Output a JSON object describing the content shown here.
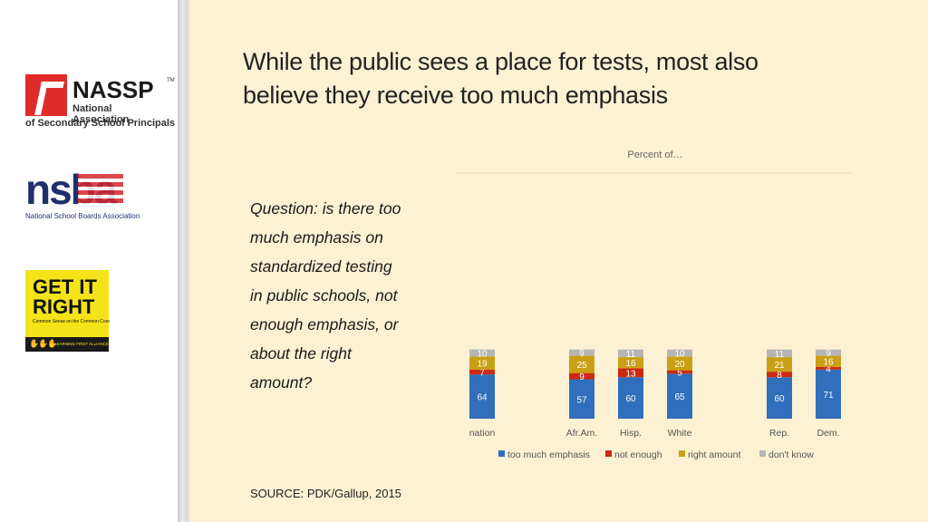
{
  "title": {
    "line1": "While the public sees a place for tests, most also",
    "line2": "believe they receive too much emphasis"
  },
  "question": {
    "lines": [
      "Question: is there too",
      "much emphasis on",
      "standardized testing",
      "in public schools, not",
      "enough emphasis, or",
      "about the right",
      "amount?"
    ]
  },
  "source": "SOURCE: PDK/Gallup, 2015",
  "logos": {
    "nassp": {
      "word": "NASSP",
      "tm": "TM",
      "sub1": "National Association",
      "sub2": "of Secondary School Principals"
    },
    "nsba": {
      "word": "nsba",
      "sub": "National School Boards Association"
    },
    "getitright": {
      "line1": "GET IT",
      "line2": "RIGHT",
      "sub": "Common Sense on the Common Core",
      "band": "LEARNING FIRST ALLIANCE"
    }
  },
  "colors": {
    "too_much_emphasis": "#2f6fbb",
    "not_enough": "#cc2a12",
    "right_amount": "#c9a013",
    "dont_know": "#b5b5b5"
  },
  "chart_data": {
    "type": "bar",
    "stacked": true,
    "title": "Percent of…",
    "categories": [
      "nation",
      "Afr.Am.",
      "Hisp.",
      "White",
      "Rep.",
      "Dem."
    ],
    "series": [
      {
        "name": "too much emphasis",
        "values": [
          64,
          57,
          60,
          65,
          60,
          71
        ]
      },
      {
        "name": "not enough",
        "values": [
          7,
          9,
          13,
          5,
          8,
          4
        ]
      },
      {
        "name": "right amount",
        "values": [
          19,
          25,
          16,
          20,
          21,
          16
        ]
      },
      {
        "name": "don't know",
        "values": [
          10,
          9,
          11,
          10,
          11,
          9
        ]
      }
    ],
    "ylim": [
      0,
      100
    ],
    "grid": false,
    "legend": "bottom"
  }
}
